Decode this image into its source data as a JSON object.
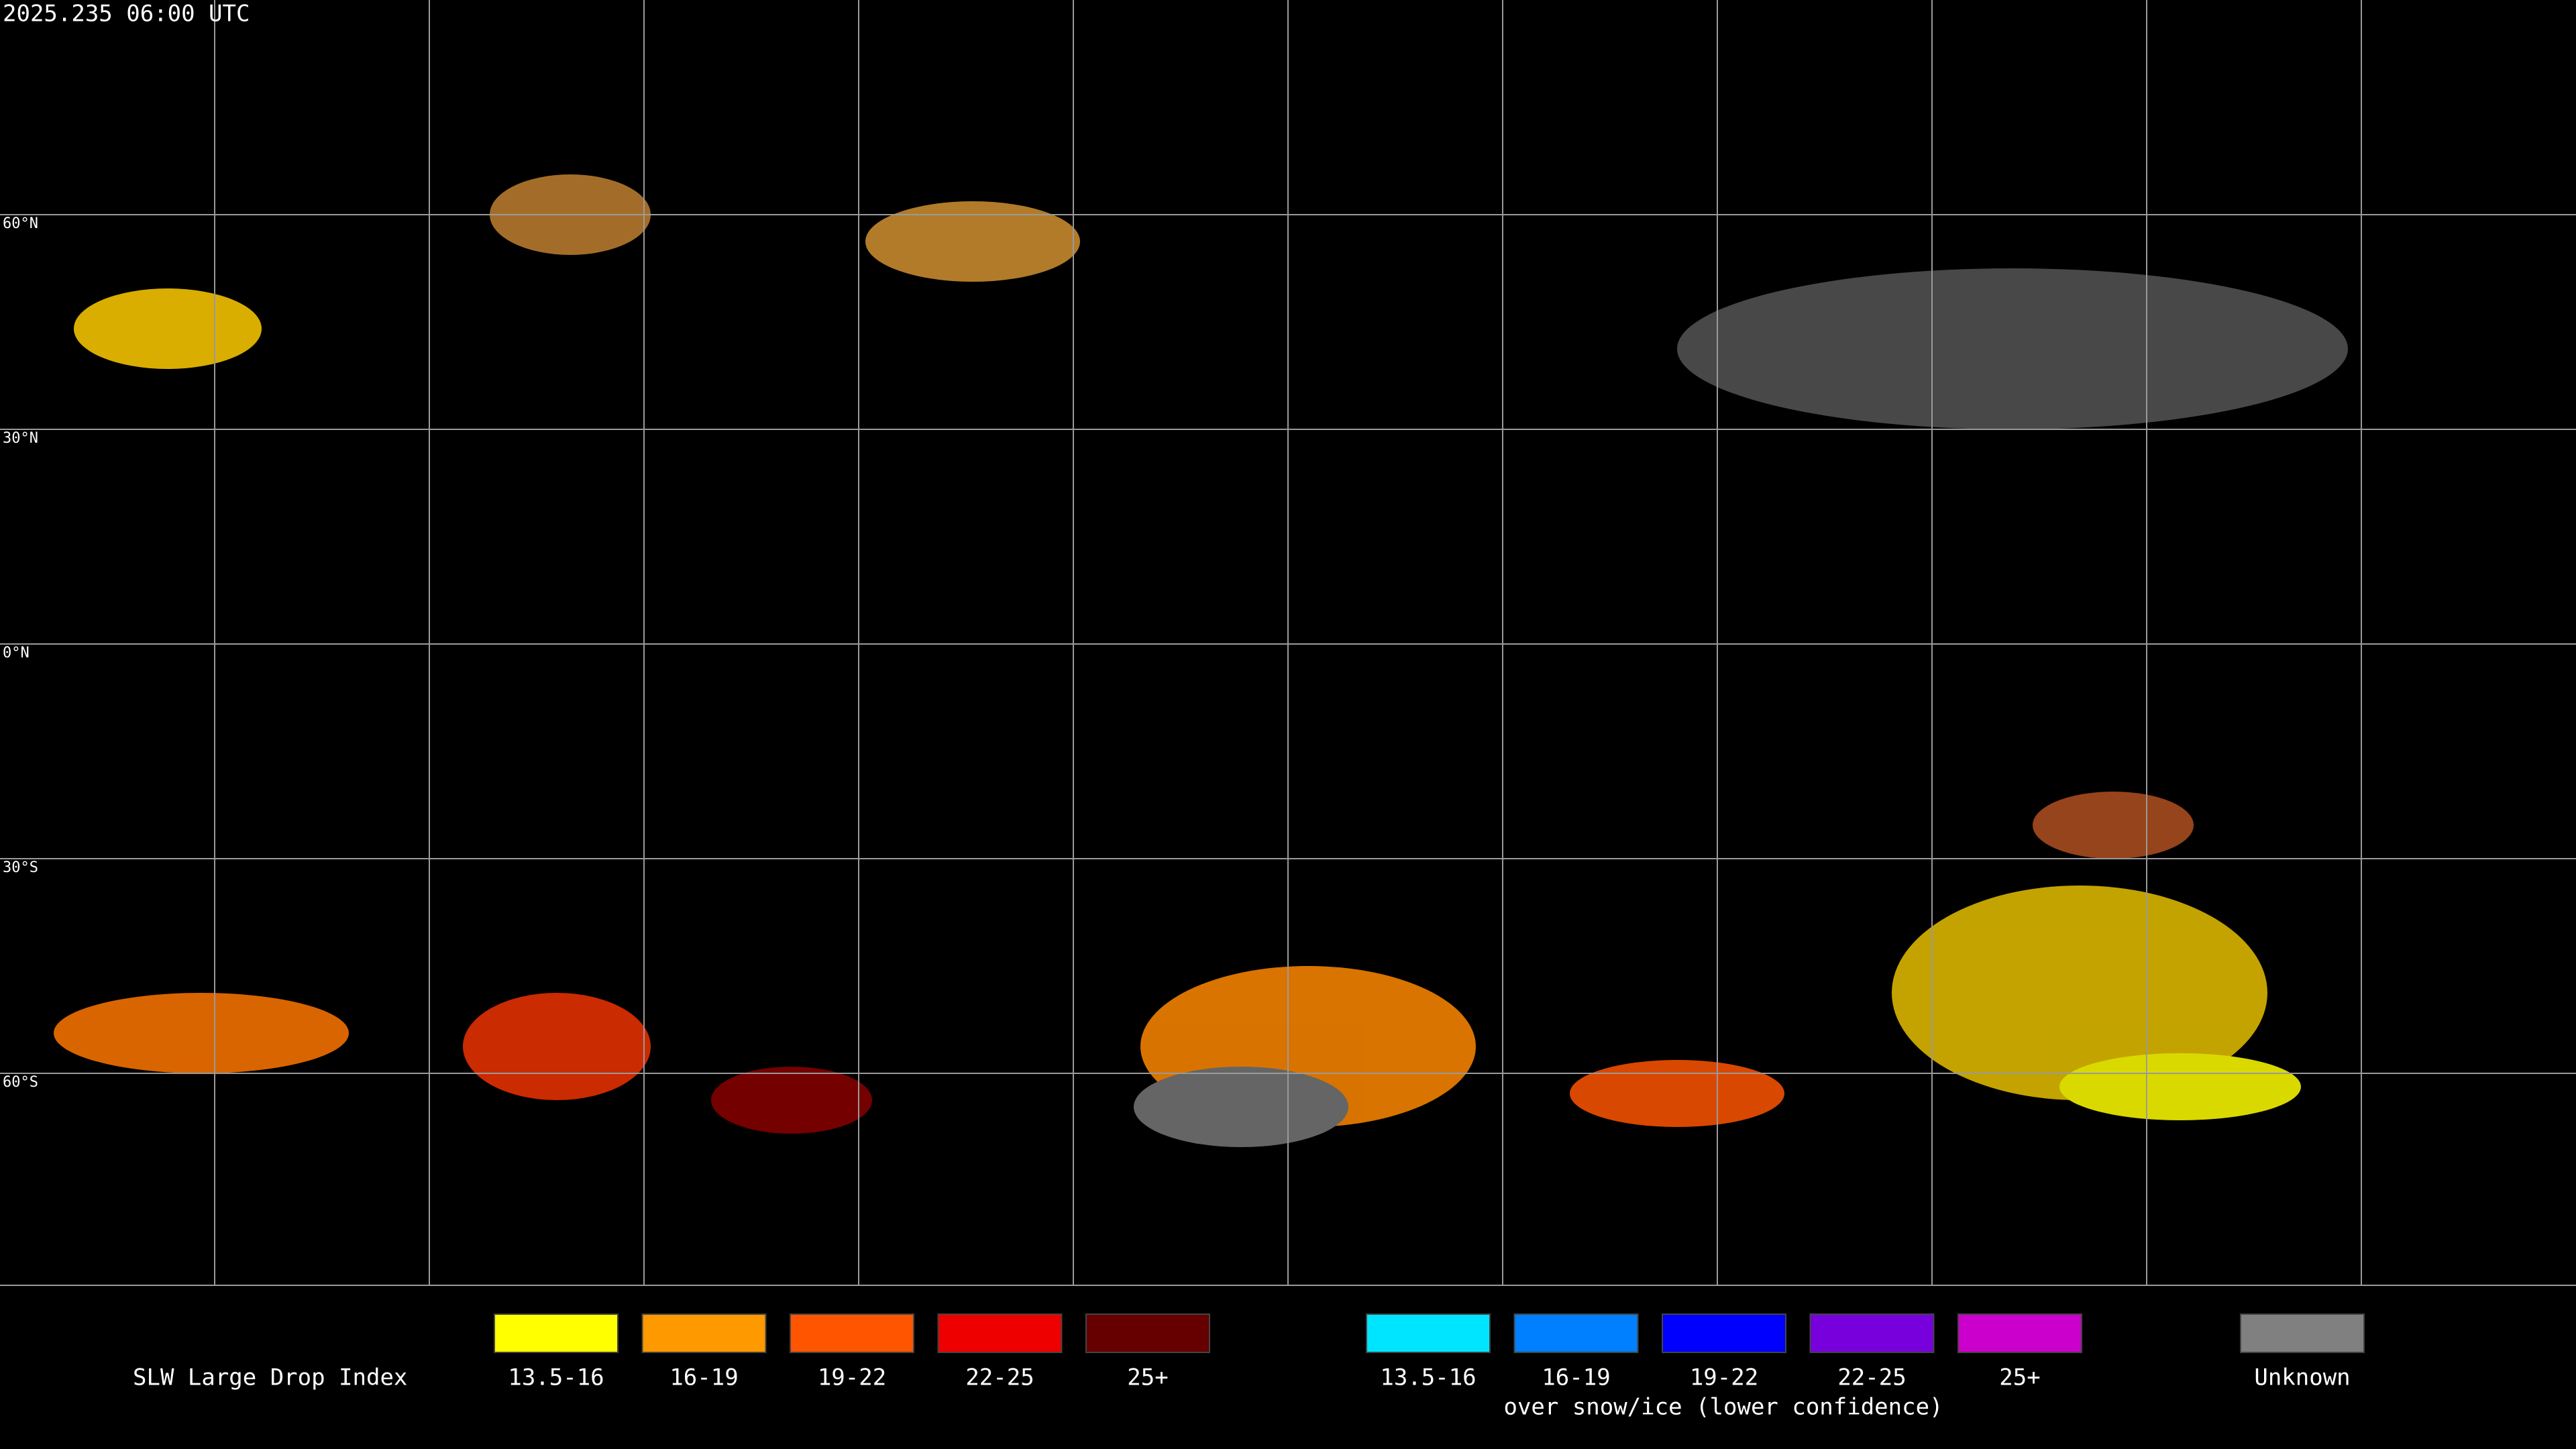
{
  "header": {
    "timestamp": "2025.235 06:00 UTC"
  },
  "map": {
    "lat_labels": [
      "60°N",
      "30°N",
      "0°N",
      "30°S",
      "60°S"
    ]
  },
  "legend": {
    "title": "SLW Large Drop Index",
    "groups": [
      {
        "items": [
          {
            "label": "13.5-16",
            "color": "#ffff00"
          },
          {
            "label": "16-19",
            "color": "#ff9900"
          },
          {
            "label": "19-22",
            "color": "#ff5500"
          },
          {
            "label": "22-25",
            "color": "#ee0000"
          },
          {
            "label": "25+",
            "color": "#660000"
          }
        ]
      },
      {
        "items": [
          {
            "label": "13.5-16",
            "color": "#00e5ff"
          },
          {
            "label": "16-19",
            "color": "#0080ff"
          },
          {
            "label": "19-22",
            "color": "#0000ff"
          },
          {
            "label": "22-25",
            "color": "#7700dd"
          },
          {
            "label": "25+",
            "color": "#cc00cc"
          }
        ],
        "caption": "over snow/ice (lower confidence)"
      }
    ],
    "unknown": {
      "label": "Unknown",
      "color": "#808080"
    }
  }
}
